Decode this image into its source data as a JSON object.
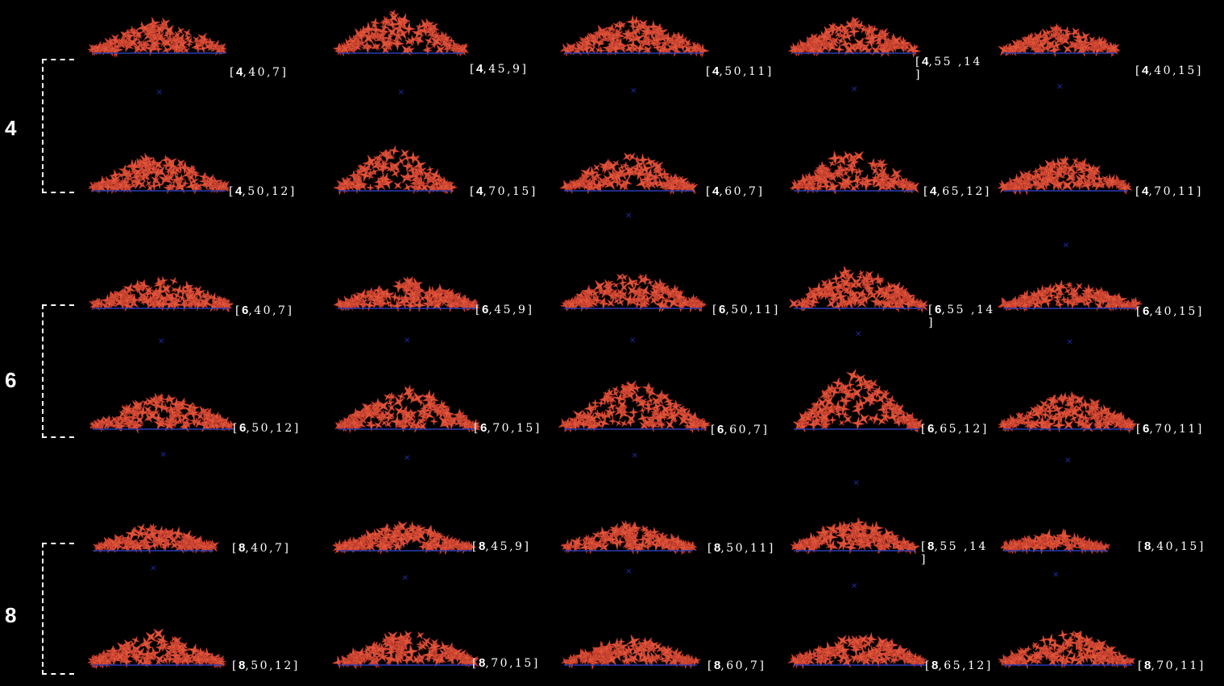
{
  "groups": [
    {
      "label": "4"
    },
    {
      "label": "6"
    },
    {
      "label": "8"
    }
  ],
  "colors": {
    "background": "#000000",
    "particles": "#e0553a",
    "particle_edge": "#b8382a",
    "baseline": "#2b3bb0",
    "marker": "#1b2a9a",
    "text": "#ffffff"
  },
  "cells": [
    {
      "first": "4",
      "rest": "40,7"
    },
    {
      "first": "4",
      "rest": "45,9"
    },
    {
      "first": "4",
      "rest": "50,11"
    },
    {
      "first": "4",
      "rest": "55 ,14\n"
    },
    {
      "first": "4",
      "rest": "40,15"
    },
    {
      "first": "4",
      "rest": "50,12"
    },
    {
      "first": "4",
      "rest": "70,15"
    },
    {
      "first": "4",
      "rest": "60,7"
    },
    {
      "first": "4",
      "rest": "65,12"
    },
    {
      "first": "4",
      "rest": "70,11"
    },
    {
      "first": "6",
      "rest": "40,7"
    },
    {
      "first": "6",
      "rest": "45,9"
    },
    {
      "first": "6",
      "rest": "50,11"
    },
    {
      "first": "6",
      "rest": "55 ,14\n"
    },
    {
      "first": "6",
      "rest": "40,15"
    },
    {
      "first": "6",
      "rest": "50,12"
    },
    {
      "first": "6",
      "rest": "70,15"
    },
    {
      "first": "6",
      "rest": "60,7"
    },
    {
      "first": "6",
      "rest": "65,12"
    },
    {
      "first": "6",
      "rest": "70,11"
    },
    {
      "first": "8",
      "rest": "40,7"
    },
    {
      "first": "8",
      "rest": "45,9"
    },
    {
      "first": "8",
      "rest": "50,11"
    },
    {
      "first": "8",
      "rest": "55 ,14\n"
    },
    {
      "first": "8",
      "rest": "40,15"
    },
    {
      "first": "8",
      "rest": "50,12"
    },
    {
      "first": "8",
      "rest": "70,15"
    },
    {
      "first": "8",
      "rest": "60,7"
    },
    {
      "first": "8",
      "rest": "65,12"
    },
    {
      "first": "8",
      "rest": "70,11"
    }
  ]
}
